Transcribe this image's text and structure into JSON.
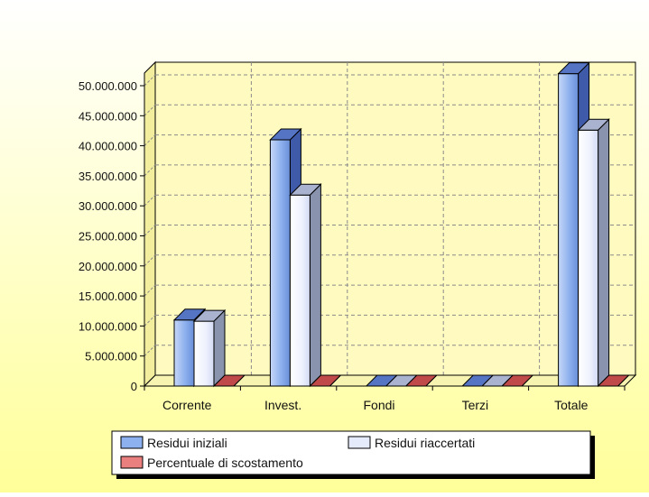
{
  "chart_data": {
    "type": "bar",
    "title": "",
    "xlabel": "",
    "ylabel": "",
    "categories": [
      "Corrente",
      "Invest.",
      "Fondi",
      "Terzi",
      "Totale"
    ],
    "series": [
      {
        "name": "Residui iniziali",
        "values": [
          11000000,
          41000000,
          0,
          0,
          52000000
        ],
        "color": "#7fa4e8"
      },
      {
        "name": "Residui riaccertati",
        "values": [
          10800000,
          31800000,
          0,
          0,
          42600000
        ],
        "color": "#e2e8fc"
      },
      {
        "name": "Percentuale di scostamento",
        "values": [
          0,
          0,
          0,
          0,
          0
        ],
        "color": "#e97f7f"
      }
    ],
    "ylim": [
      0,
      50000000
    ],
    "yticks": [
      0,
      5000000,
      10000000,
      15000000,
      20000000,
      25000000,
      30000000,
      35000000,
      40000000,
      45000000,
      50000000
    ],
    "ytick_labels": [
      "0",
      "5.000.000",
      "10.000.000",
      "15.000.000",
      "20.000.000",
      "25.000.000",
      "30.000.000",
      "35.000.000",
      "40.000.000",
      "45.000.000",
      "50.000.000"
    ],
    "grid": true,
    "legend_position": "bottom",
    "plot_background": "#fffbc0",
    "page_background_gradient": [
      "#ffffff",
      "#ffff9a"
    ]
  }
}
